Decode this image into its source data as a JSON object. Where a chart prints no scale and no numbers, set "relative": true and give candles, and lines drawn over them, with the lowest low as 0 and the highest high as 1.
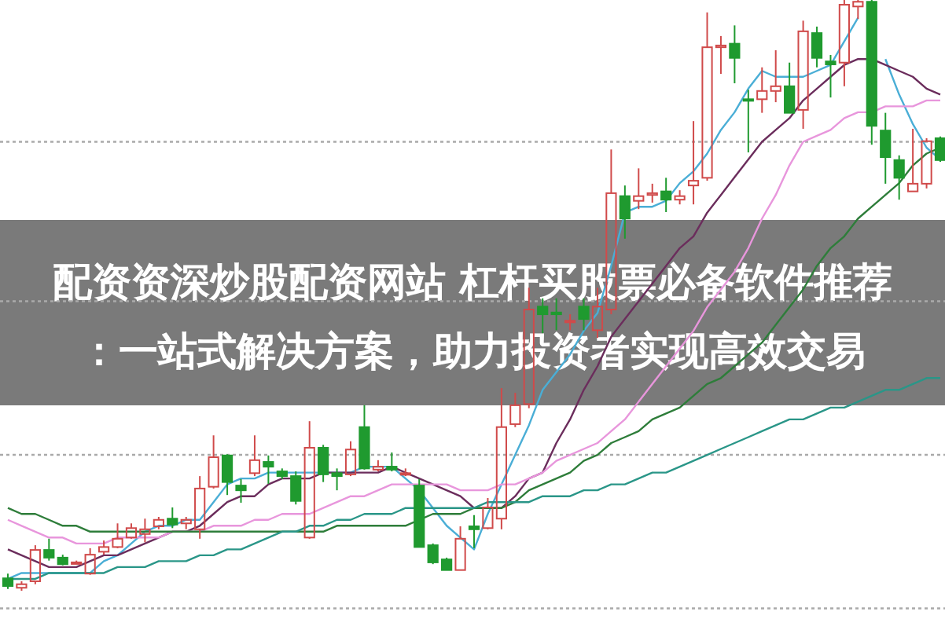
{
  "chart_data": {
    "type": "candlestick",
    "title": "配资资深炒股配资网站 杠杆买股票必备软件推荐：一站式解决方案，助力投资者实现高效交易",
    "relative": true,
    "categories": [
      null,
      null,
      null,
      null,
      null,
      null,
      null,
      null,
      null,
      null,
      null,
      null,
      null,
      null,
      null,
      null,
      null,
      null,
      null,
      null,
      null,
      null,
      null,
      null,
      null,
      null,
      null,
      null,
      null,
      null,
      null,
      null,
      null,
      null,
      null,
      null,
      null,
      null,
      null,
      null,
      null,
      null,
      null,
      null,
      null,
      null,
      null,
      null,
      null,
      null,
      null,
      null,
      null,
      null,
      null,
      null,
      null,
      null,
      null,
      null,
      null,
      null,
      null,
      null,
      null,
      null,
      null,
      null,
      null
    ],
    "ohlc": [
      [
        0.021,
        0.029,
        0.003,
        0.008
      ],
      [
        0.005,
        0.016,
        0,
        0.011
      ],
      [
        0.016,
        0.077,
        0.011,
        0.069
      ],
      [
        0.069,
        0.088,
        0.051,
        0.056
      ],
      [
        0.056,
        0.061,
        0.043,
        0.045
      ],
      [
        0.048,
        0.051,
        0.045,
        0.048
      ],
      [
        0.029,
        0.072,
        0.027,
        0.061
      ],
      [
        0.066,
        0.085,
        0.061,
        0.074
      ],
      [
        0.074,
        0.114,
        0.072,
        0.088
      ],
      [
        0.09,
        0.114,
        0.088,
        0.106
      ],
      [
        0.096,
        0.122,
        0.082,
        0.104
      ],
      [
        0.109,
        0.125,
        0.104,
        0.12
      ],
      [
        0.122,
        0.141,
        0.106,
        0.112
      ],
      [
        0.114,
        0.125,
        0.104,
        0.12
      ],
      [
        0.104,
        0.194,
        0.088,
        0.173
      ],
      [
        0.176,
        0.263,
        0.173,
        0.226
      ],
      [
        0.229,
        0.231,
        0.162,
        0.184
      ],
      [
        0.178,
        0.189,
        0.149,
        0.17
      ],
      [
        0.199,
        0.263,
        0.194,
        0.221
      ],
      [
        0.218,
        0.229,
        0.181,
        0.21
      ],
      [
        0.202,
        0.207,
        0.189,
        0.194
      ],
      [
        0.194,
        0.202,
        0.146,
        0.152
      ],
      [
        0.09,
        0.287,
        0.088,
        0.242
      ],
      [
        0.242,
        0.247,
        0.184,
        0.197
      ],
      [
        0.199,
        0.207,
        0.17,
        0.194
      ],
      [
        0.197,
        0.253,
        0.194,
        0.239
      ],
      [
        0.277,
        0.314,
        0.205,
        0.207
      ],
      [
        0.205,
        0.221,
        0.202,
        0.21
      ],
      [
        0.21,
        0.234,
        0.202,
        0.205
      ],
      [
        0.199,
        0.207,
        0.194,
        0.199
      ],
      [
        0.178,
        0.189,
        0.074,
        0.074
      ],
      [
        0.077,
        0.08,
        0.045,
        0.048
      ],
      [
        0.053,
        0.056,
        0.035,
        0.035
      ],
      [
        0.035,
        0.109,
        0.035,
        0.088
      ],
      [
        0.109,
        0.128,
        0.072,
        0.104
      ],
      [
        0.106,
        0.157,
        0.104,
        0.141
      ],
      [
        0.122,
        0.343,
        0.104,
        0.277
      ],
      [
        0.282,
        0.335,
        0.277,
        0.314
      ],
      [
        0.316,
        0.513,
        0.309,
        0.476
      ],
      [
        0.481,
        0.495,
        0.436,
        0.468
      ],
      [
        0.471,
        0.495,
        0.441,
        0.468
      ],
      [
        0.455,
        0.468,
        0.441,
        0.457
      ],
      [
        0.481,
        0.495,
        0.441,
        0.46
      ],
      [
        0.441,
        0.513,
        0.428,
        0.481
      ],
      [
        0.476,
        0.747,
        0.468,
        0.673
      ],
      [
        0.668,
        0.686,
        0.596,
        0.63
      ],
      [
        0.66,
        0.715,
        0.646,
        0.668
      ],
      [
        0.67,
        0.689,
        0.657,
        0.673
      ],
      [
        0.676,
        0.699,
        0.641,
        0.662
      ],
      [
        0.662,
        0.678,
        0.654,
        0.668
      ],
      [
        0.686,
        0.795,
        0.654,
        0.694
      ],
      [
        0.699,
        0.979,
        0.694,
        0.92
      ],
      [
        0.92,
        0.939,
        0.875,
        0.923
      ],
      [
        0.926,
        0.957,
        0.859,
        0.902
      ],
      [
        0.832,
        0.848,
        0.742,
        0.83
      ],
      [
        0.832,
        0.886,
        0.809,
        0.846
      ],
      [
        0.846,
        0.915,
        0.827,
        0.854
      ],
      [
        0.854,
        0.894,
        0.809,
        0.809
      ],
      [
        0.814,
        0.965,
        0.782,
        0.947
      ],
      [
        0.944,
        0.955,
        0.886,
        0.902
      ],
      [
        0.896,
        0.907,
        0.835,
        0.891
      ],
      [
        0.894,
        1,
        0.854,
        0.992
      ],
      [
        0.989,
        1,
        0.968,
        0.997
      ],
      [
        0.997,
        1,
        0.755,
        0.787
      ],
      [
        0.779,
        0.809,
        0.689,
        0.734
      ],
      [
        0.729,
        0.737,
        0.662,
        0.699
      ],
      [
        0.676,
        0.782,
        0.676,
        0.689
      ],
      [
        0.689,
        0.766,
        0.681,
        0.761
      ],
      [
        0.766,
        0.769,
        0.726,
        0.729
      ]
    ],
    "colors": [
      "#1f9a2f",
      "#d04a4a",
      "#d04a4a",
      "#1f9a2f",
      "#1f9a2f",
      "#d04a4a",
      "#d04a4a",
      "#d04a4a",
      "#d04a4a",
      "#d04a4a",
      "#d04a4a",
      "#d04a4a",
      "#1f9a2f",
      "#d04a4a",
      "#d04a4a",
      "#d04a4a",
      "#1f9a2f",
      "#1f9a2f",
      "#d04a4a",
      "#1f9a2f",
      "#1f9a2f",
      "#1f9a2f",
      "#d04a4a",
      "#1f9a2f",
      "#1f9a2f",
      "#d04a4a",
      "#1f9a2f",
      "#d04a4a",
      "#1f9a2f",
      "#d04a4a",
      "#1f9a2f",
      "#1f9a2f",
      "#1f9a2f",
      "#d04a4a",
      "#1f9a2f",
      "#d04a4a",
      "#d04a4a",
      "#d04a4a",
      "#d04a4a",
      "#1f9a2f",
      "#1f9a2f",
      "#d04a4a",
      "#1f9a2f",
      "#d04a4a",
      "#d04a4a",
      "#1f9a2f",
      "#d04a4a",
      "#d04a4a",
      "#1f9a2f",
      "#d04a4a",
      "#d04a4a",
      "#d04a4a",
      "#d04a4a",
      "#1f9a2f",
      "#1f9a2f",
      "#d04a4a",
      "#d04a4a",
      "#1f9a2f",
      "#d04a4a",
      "#1f9a2f",
      "#1f9a2f",
      "#d04a4a",
      "#d04a4a",
      "#1f9a2f",
      "#1f9a2f",
      "#1f9a2f",
      "#d04a4a",
      "#d04a4a",
      "#1f9a2f"
    ],
    "series": [
      {
        "type": "line",
        "color": "#4aaed6",
        "values": [
          0.02,
          0.03,
          0.03,
          0.03,
          0.03,
          0.03,
          0.03,
          0.05,
          0.06,
          0.08,
          0.1,
          0.11,
          0.11,
          0.12,
          0.12,
          0.15,
          0.18,
          0.19,
          0.19,
          0.2,
          0.2,
          0.2,
          0.2,
          0.2,
          0.2,
          0.2,
          0.21,
          0.21,
          0.21,
          0.19,
          0.17,
          0.14,
          0.11,
          0.09,
          0.07,
          0.13,
          0.18,
          0.23,
          0.28,
          0.34,
          0.37,
          0.4,
          0.44,
          0.47,
          0.55,
          0.64,
          0.65,
          0.65,
          0.66,
          0.69,
          0.71,
          0.74,
          0.78,
          0.81,
          0.85,
          0.88,
          0.87,
          0.87,
          0.87,
          0.88,
          0.89,
          0.93,
          0.97,
          null,
          0.9,
          0.84,
          0.79,
          0.75,
          0.73
        ]
      },
      {
        "type": "line",
        "color": "#6b2d5c",
        "values": [
          0.07,
          0.06,
          0.05,
          0.04,
          0.04,
          0.04,
          0.05,
          0.06,
          0.06,
          0.07,
          0.08,
          0.09,
          0.1,
          0.1,
          0.11,
          0.13,
          0.15,
          0.16,
          0.16,
          0.18,
          0.19,
          0.19,
          0.19,
          0.2,
          0.2,
          0.2,
          0.2,
          0.2,
          0.21,
          0.2,
          0.19,
          0.18,
          0.17,
          0.16,
          0.14,
          0.14,
          0.14,
          0.16,
          0.19,
          0.2,
          0.25,
          0.29,
          0.34,
          0.38,
          0.43,
          0.46,
          0.49,
          0.52,
          0.55,
          0.58,
          0.6,
          0.64,
          0.67,
          0.7,
          0.73,
          0.76,
          0.78,
          0.8,
          0.83,
          0.85,
          0.87,
          0.89,
          0.9,
          0.9,
          0.89,
          0.88,
          0.87,
          0.85,
          0.84
        ]
      },
      {
        "type": "line",
        "color": "#e896dc",
        "values": [
          0.12,
          0.11,
          0.1,
          0.09,
          0.09,
          0.08,
          0.08,
          0.08,
          0.09,
          0.09,
          0.09,
          0.09,
          0.1,
          0.1,
          0.1,
          0.11,
          0.11,
          0.11,
          0.12,
          0.12,
          0.13,
          0.13,
          0.13,
          0.14,
          0.15,
          0.16,
          0.16,
          0.17,
          0.18,
          0.18,
          0.18,
          0.18,
          0.18,
          0.17,
          0.17,
          0.17,
          0.18,
          0.18,
          0.19,
          0.2,
          0.22,
          0.23,
          0.24,
          0.25,
          0.27,
          0.29,
          0.32,
          0.35,
          0.38,
          0.41,
          0.44,
          0.48,
          0.51,
          0.54,
          0.58,
          0.63,
          0.67,
          0.72,
          0.76,
          0.77,
          0.78,
          0.8,
          0.81,
          0.81,
          0.82,
          0.82,
          0.82,
          0.83,
          0.83
        ]
      },
      {
        "type": "line",
        "color": "#2e7d3a",
        "values": [
          0.14,
          0.13,
          0.13,
          0.12,
          0.11,
          0.11,
          0.1,
          0.1,
          0.1,
          0.1,
          0.1,
          0.1,
          0.1,
          0.1,
          0.1,
          0.1,
          0.1,
          0.1,
          0.1,
          0.1,
          0.1,
          0.1,
          0.1,
          0.1,
          0.11,
          0.11,
          0.11,
          0.11,
          0.11,
          0.11,
          0.12,
          0.13,
          0.13,
          0.13,
          0.14,
          0.14,
          0.14,
          0.15,
          0.17,
          0.18,
          0.19,
          0.2,
          0.22,
          0.23,
          0.25,
          0.26,
          0.27,
          0.29,
          0.3,
          0.31,
          0.33,
          0.35,
          0.36,
          0.38,
          0.4,
          0.42,
          0.45,
          0.48,
          0.51,
          0.55,
          0.58,
          0.6,
          0.63,
          0.65,
          0.67,
          0.69,
          0.72,
          0.74,
          0.75
        ]
      },
      {
        "type": "line",
        "color": "#2a9688",
        "values": [
          0.02,
          0.02,
          0.02,
          0.03,
          0.03,
          0.03,
          0.03,
          0.03,
          0.04,
          0.04,
          0.04,
          0.05,
          0.05,
          0.05,
          0.06,
          0.06,
          0.07,
          0.07,
          0.08,
          0.09,
          0.1,
          0.1,
          0.11,
          0.11,
          0.12,
          0.12,
          0.13,
          0.13,
          0.13,
          0.14,
          0.14,
          0.14,
          0.14,
          0.14,
          0.14,
          0.15,
          0.15,
          0.15,
          0.15,
          0.16,
          0.16,
          0.16,
          0.17,
          0.17,
          0.18,
          0.18,
          0.19,
          0.2,
          0.2,
          0.21,
          0.22,
          0.23,
          0.24,
          0.25,
          0.26,
          0.27,
          0.28,
          0.29,
          0.29,
          0.3,
          0.31,
          0.31,
          0.32,
          0.33,
          0.34,
          0.34,
          0.35,
          0.36,
          0.36
        ]
      }
    ],
    "ref_lines": [
      {
        "axis": "y",
        "value": 0.76,
        "color": "#aaaaaa",
        "line_style": "dotted"
      },
      {
        "axis": "y",
        "value": 0.49,
        "color": "#aaaaaa",
        "line_style": "dotted"
      },
      {
        "axis": "y",
        "value": 0.23,
        "color": "#aaaaaa",
        "line_style": "dotted"
      },
      {
        "axis": "y",
        "value": -0.03,
        "color": "#aaaaaa",
        "line_style": "dotted"
      }
    ]
  }
}
